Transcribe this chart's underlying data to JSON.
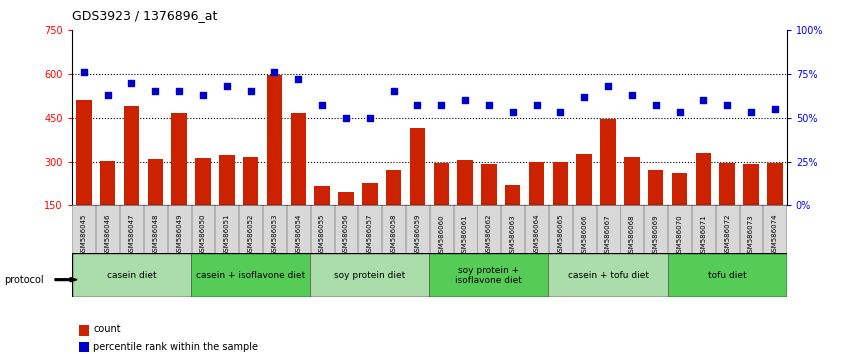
{
  "title": "GDS3923 / 1376896_at",
  "samples": [
    "GSM586045",
    "GSM586046",
    "GSM586047",
    "GSM586048",
    "GSM586049",
    "GSM586050",
    "GSM586051",
    "GSM586052",
    "GSM586053",
    "GSM586054",
    "GSM586055",
    "GSM586056",
    "GSM586057",
    "GSM586058",
    "GSM586059",
    "GSM586060",
    "GSM586061",
    "GSM586062",
    "GSM586063",
    "GSM586064",
    "GSM586065",
    "GSM586066",
    "GSM586067",
    "GSM586068",
    "GSM586069",
    "GSM586070",
    "GSM586071",
    "GSM586072",
    "GSM586073",
    "GSM586074"
  ],
  "counts": [
    510,
    302,
    490,
    308,
    465,
    312,
    322,
    315,
    595,
    465,
    215,
    195,
    225,
    270,
    415,
    295,
    305,
    290,
    220,
    300,
    300,
    325,
    445,
    315,
    270,
    260,
    330,
    295,
    290,
    295
  ],
  "percentile": [
    76,
    63,
    70,
    65,
    65,
    63,
    68,
    65,
    76,
    72,
    57,
    50,
    50,
    65,
    57,
    57,
    60,
    57,
    53,
    57,
    53,
    62,
    68,
    63,
    57,
    53,
    60,
    57,
    53,
    55
  ],
  "groups": [
    {
      "label": "casein diet",
      "start": 0,
      "end": 5,
      "color": "#aaddaa"
    },
    {
      "label": "casein + isoflavone diet",
      "start": 5,
      "end": 10,
      "color": "#55cc55"
    },
    {
      "label": "soy protein diet",
      "start": 10,
      "end": 15,
      "color": "#aaddaa"
    },
    {
      "label": "soy protein +\nisoflavone diet",
      "start": 15,
      "end": 20,
      "color": "#55cc55"
    },
    {
      "label": "casein + tofu diet",
      "start": 20,
      "end": 25,
      "color": "#aaddaa"
    },
    {
      "label": "tofu diet",
      "start": 25,
      "end": 30,
      "color": "#55cc55"
    }
  ],
  "bar_color": "#cc2200",
  "dot_color": "#0000cc",
  "ylim_left": [
    150,
    750
  ],
  "ylim_right": [
    0,
    100
  ],
  "yticks_left": [
    150,
    300,
    450,
    600,
    750
  ],
  "yticks_right": [
    0,
    25,
    50,
    75,
    100
  ],
  "grid_values": [
    300,
    450,
    600
  ],
  "background_color": "#ffffff",
  "plot_bg_color": "#ffffff",
  "tick_bg_color": "#d8d8d8"
}
